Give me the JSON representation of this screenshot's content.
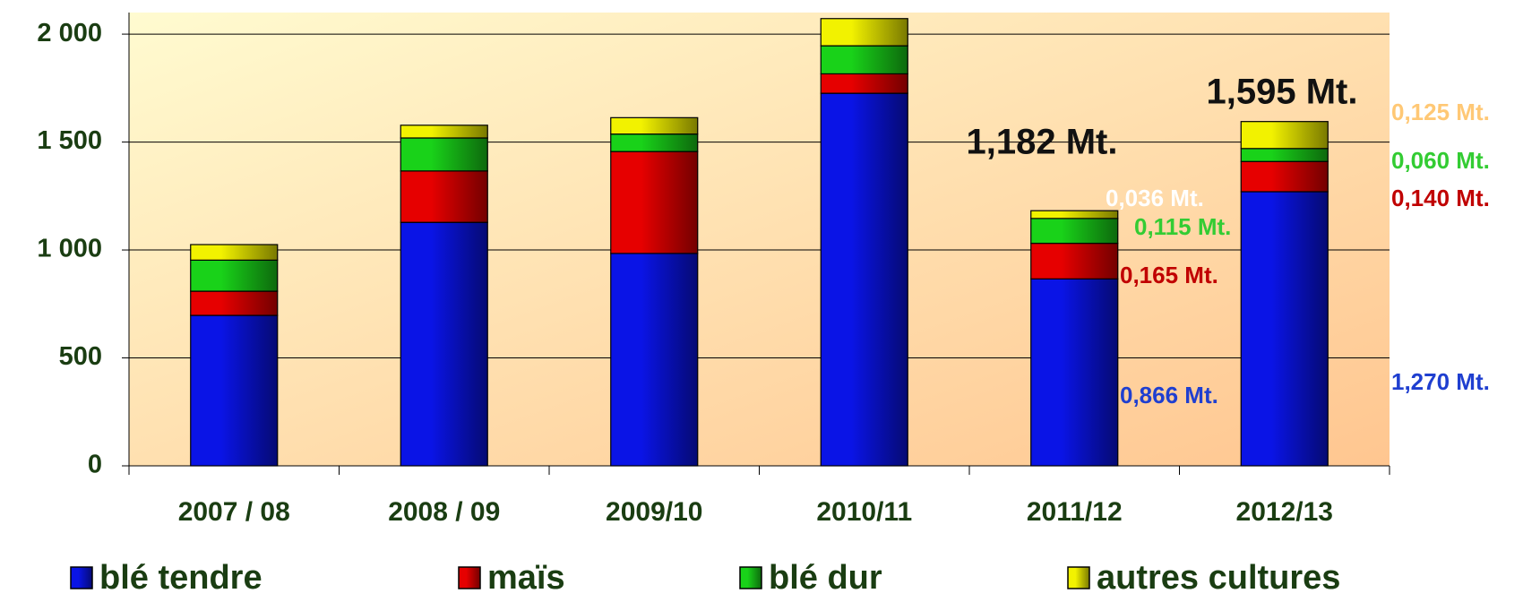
{
  "chart_data": {
    "type": "stacked_bar",
    "categories": [
      "2007 / 08",
      "2008 / 09",
      "2009/10",
      "2010/11",
      "2011/12",
      "2012/13"
    ],
    "series": [
      {
        "name": "blé tendre",
        "color": "#0a14e6",
        "label_color": "#1f3fd0",
        "values": [
          697,
          1128,
          984,
          1726,
          866,
          1270
        ],
        "value_labels": [
          null,
          null,
          null,
          null,
          "0,866 Mt.",
          "1,270 Mt."
        ]
      },
      {
        "name": "maïs",
        "color": "#e60000",
        "label_color": "#c00000",
        "values": [
          112,
          238,
          472,
          90,
          165,
          140
        ],
        "value_labels": [
          null,
          null,
          null,
          null,
          "0,165 Mt.",
          "0,140 Mt."
        ]
      },
      {
        "name": "blé dur",
        "color": "#19d219",
        "label_color": "#33cc33",
        "values": [
          144,
          153,
          81,
          130,
          115,
          60
        ],
        "value_labels": [
          null,
          null,
          null,
          null,
          "0,115 Mt.",
          "0,060 Mt."
        ]
      },
      {
        "name": "autres cultures",
        "color": "#f2f200",
        "label_color": "#ffc875",
        "values": [
          72,
          59,
          76,
          126,
          36,
          125
        ],
        "value_labels": [
          null,
          null,
          null,
          null,
          "0,036 Mt.",
          "0,125 Mt."
        ]
      }
    ],
    "annotations": [
      {
        "text": "1,182 Mt.",
        "value": 1182
      },
      {
        "text": "1,595 Mt.",
        "value": 1595
      }
    ],
    "ylim": [
      0,
      2100
    ],
    "yticks": [
      0,
      {
        "value": 500,
        "label": "500"
      },
      {
        "value": 1000,
        "label": "1 000"
      },
      {
        "value": 1500,
        "label": "1 500"
      },
      {
        "value": 2000,
        "label": "2 000"
      }
    ],
    "grid": true,
    "legend": "bottom"
  }
}
